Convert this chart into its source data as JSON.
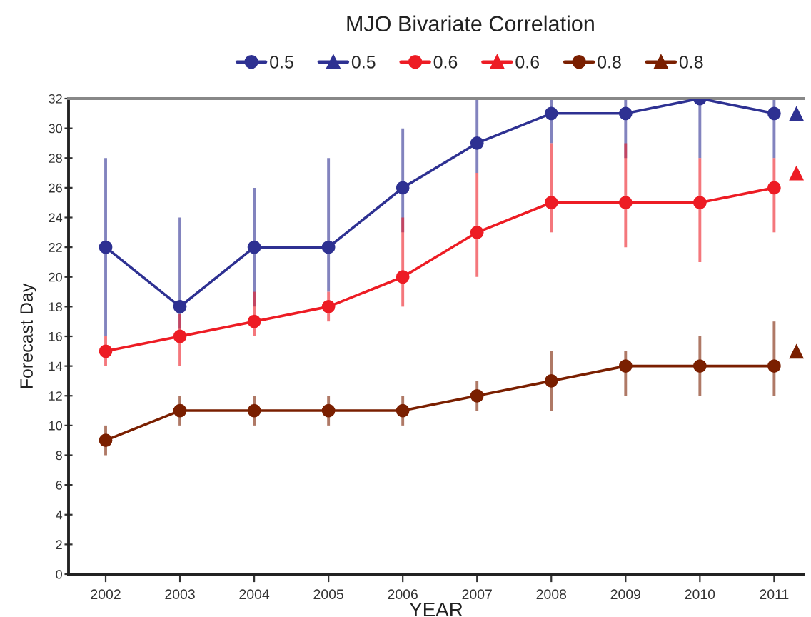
{
  "chart_data": {
    "type": "line",
    "title": "MJO Bivariate Correlation",
    "xlabel": "YEAR",
    "ylabel": "Forecast Day",
    "x": [
      2002,
      2003,
      2004,
      2005,
      2006,
      2007,
      2008,
      2009,
      2010,
      2011,
      2011.3
    ],
    "series": [
      {
        "name": "0.5",
        "color": "#2e3192",
        "marker": "circle",
        "values": [
          22,
          18,
          22,
          22,
          26,
          29,
          31,
          31,
          32,
          31,
          null
        ],
        "errors": [
          [
            16,
            28
          ],
          [
            16.5,
            24
          ],
          [
            18,
            26
          ],
          [
            19,
            28
          ],
          [
            23,
            30
          ],
          [
            27,
            32
          ],
          [
            29,
            32
          ],
          [
            28,
            32
          ],
          [
            28,
            32
          ],
          [
            28,
            32
          ],
          null
        ]
      },
      {
        "name": "0.5",
        "color": "#2e3192",
        "marker": "triangle",
        "values": [
          null,
          null,
          null,
          null,
          null,
          null,
          null,
          null,
          null,
          null,
          31
        ]
      },
      {
        "name": "0.6",
        "color": "#ed1c24",
        "marker": "circle",
        "values": [
          15,
          16,
          17,
          18,
          20,
          23,
          25,
          25,
          25,
          26,
          null
        ],
        "errors": [
          [
            14,
            16
          ],
          [
            14,
            17.5
          ],
          [
            16,
            19
          ],
          [
            17,
            19
          ],
          [
            18,
            24
          ],
          [
            20,
            27
          ],
          [
            23,
            29
          ],
          [
            22,
            29
          ],
          [
            21,
            28
          ],
          [
            23,
            28
          ],
          null
        ]
      },
      {
        "name": "0.6",
        "color": "#ed1c24",
        "marker": "triangle",
        "values": [
          null,
          null,
          null,
          null,
          null,
          null,
          null,
          null,
          null,
          null,
          27
        ]
      },
      {
        "name": "0.8",
        "color": "#7a1f00",
        "marker": "circle",
        "values": [
          9,
          11,
          11,
          11,
          11,
          12,
          13,
          14,
          14,
          14,
          null
        ],
        "errors": [
          [
            8,
            10
          ],
          [
            10,
            12
          ],
          [
            10,
            12
          ],
          [
            10,
            12
          ],
          [
            10,
            12
          ],
          [
            11,
            13
          ],
          [
            11,
            15
          ],
          [
            12,
            15
          ],
          [
            12,
            16
          ],
          [
            12,
            17
          ],
          null
        ]
      },
      {
        "name": "0.8",
        "color": "#7a1f00",
        "marker": "triangle",
        "values": [
          null,
          null,
          null,
          null,
          null,
          null,
          null,
          null,
          null,
          null,
          15
        ]
      }
    ],
    "xlim": [
      2001.5,
      2011.4
    ],
    "xticks": [
      2002,
      2003,
      2004,
      2005,
      2006,
      2007,
      2008,
      2009,
      2010,
      2011
    ],
    "ylim": [
      0,
      32
    ],
    "yticks": [
      0,
      2,
      4,
      6,
      8,
      10,
      12,
      14,
      16,
      18,
      20,
      22,
      24,
      26,
      28,
      30,
      32
    ],
    "legend": "top",
    "line_style": "solid"
  }
}
